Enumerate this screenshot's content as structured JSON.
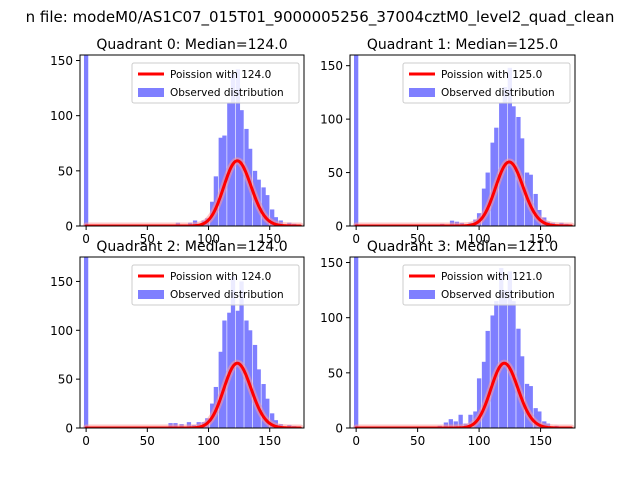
{
  "figure": {
    "suptitle": "n file: modeM0/AS1C07_015T01_9000005256_37004cztM0_level2_quad_clean"
  },
  "colors": {
    "histogram": "#7f7fff",
    "fit_line": "#ff0000",
    "fit_glow": "#ff9999",
    "axis": "#000000"
  },
  "chart_data": [
    {
      "type": "bar",
      "title": "Quadrant 0: Median=124.0",
      "xlim": [
        -5,
        178
      ],
      "ylim": [
        0,
        155
      ],
      "xticks": [
        0,
        50,
        100,
        150
      ],
      "yticks": [
        0,
        50,
        100,
        150
      ],
      "legend_placement": "top-right",
      "bin_width": 3.5,
      "bins": [
        {
          "x": 0,
          "count": 155
        },
        {
          "x": 67,
          "count": 1
        },
        {
          "x": 75,
          "count": 3
        },
        {
          "x": 85,
          "count": 3
        },
        {
          "x": 89,
          "count": 5
        },
        {
          "x": 92,
          "count": 2
        },
        {
          "x": 96,
          "count": 5
        },
        {
          "x": 99,
          "count": 7
        },
        {
          "x": 103,
          "count": 22
        },
        {
          "x": 106,
          "count": 45
        },
        {
          "x": 110,
          "count": 80
        },
        {
          "x": 113,
          "count": 82
        },
        {
          "x": 117,
          "count": 112
        },
        {
          "x": 120,
          "count": 138
        },
        {
          "x": 124,
          "count": 142
        },
        {
          "x": 127,
          "count": 105
        },
        {
          "x": 131,
          "count": 88
        },
        {
          "x": 134,
          "count": 70
        },
        {
          "x": 138,
          "count": 50
        },
        {
          "x": 141,
          "count": 42
        },
        {
          "x": 145,
          "count": 35
        },
        {
          "x": 148,
          "count": 28
        },
        {
          "x": 152,
          "count": 15
        },
        {
          "x": 155,
          "count": 8
        },
        {
          "x": 159,
          "count": 5
        },
        {
          "x": 166,
          "count": 3
        },
        {
          "x": 170,
          "count": 2
        }
      ],
      "series": [
        {
          "name": "Poission with 124.0",
          "kind": "poisson",
          "mean": 124.0,
          "scale": 1650
        },
        {
          "name": "Observed distribution",
          "kind": "histogram"
        }
      ]
    },
    {
      "type": "bar",
      "title": "Quadrant 1: Median=125.0",
      "xlim": [
        -5,
        178
      ],
      "ylim": [
        0,
        160
      ],
      "xticks": [
        0,
        50,
        100,
        150
      ],
      "yticks": [
        0,
        50,
        100,
        150
      ],
      "legend_placement": "top-right",
      "bin_width": 3.5,
      "bins": [
        {
          "x": 0,
          "count": 160
        },
        {
          "x": 70,
          "count": 2
        },
        {
          "x": 78,
          "count": 5
        },
        {
          "x": 82,
          "count": 4
        },
        {
          "x": 86,
          "count": 3
        },
        {
          "x": 93,
          "count": 3
        },
        {
          "x": 97,
          "count": 6
        },
        {
          "x": 100,
          "count": 12
        },
        {
          "x": 104,
          "count": 35
        },
        {
          "x": 107,
          "count": 50
        },
        {
          "x": 111,
          "count": 78
        },
        {
          "x": 114,
          "count": 92
        },
        {
          "x": 118,
          "count": 115
        },
        {
          "x": 121,
          "count": 130
        },
        {
          "x": 125,
          "count": 148
        },
        {
          "x": 128,
          "count": 112
        },
        {
          "x": 132,
          "count": 102
        },
        {
          "x": 135,
          "count": 82
        },
        {
          "x": 139,
          "count": 50
        },
        {
          "x": 142,
          "count": 48
        },
        {
          "x": 146,
          "count": 30
        },
        {
          "x": 149,
          "count": 15
        },
        {
          "x": 153,
          "count": 8
        },
        {
          "x": 156,
          "count": 4
        },
        {
          "x": 160,
          "count": 3
        },
        {
          "x": 167,
          "count": 3
        },
        {
          "x": 171,
          "count": 2
        }
      ],
      "series": [
        {
          "name": "Poission with 125.0",
          "kind": "poisson",
          "mean": 125.0,
          "scale": 1680
        },
        {
          "name": "Observed distribution",
          "kind": "histogram"
        }
      ]
    },
    {
      "type": "bar",
      "title": "Quadrant 2: Median=124.0",
      "xlim": [
        -5,
        178
      ],
      "ylim": [
        0,
        175
      ],
      "xticks": [
        0,
        50,
        100,
        150
      ],
      "yticks": [
        0,
        50,
        100,
        150
      ],
      "legend_placement": "top-right",
      "bin_width": 3.5,
      "bins": [
        {
          "x": 0,
          "count": 175
        },
        {
          "x": 69,
          "count": 5
        },
        {
          "x": 73,
          "count": 5
        },
        {
          "x": 78,
          "count": 4
        },
        {
          "x": 84,
          "count": 6
        },
        {
          "x": 88,
          "count": 3
        },
        {
          "x": 92,
          "count": 6
        },
        {
          "x": 96,
          "count": 6
        },
        {
          "x": 99,
          "count": 10
        },
        {
          "x": 103,
          "count": 25
        },
        {
          "x": 106,
          "count": 42
        },
        {
          "x": 110,
          "count": 78
        },
        {
          "x": 113,
          "count": 110
        },
        {
          "x": 117,
          "count": 118
        },
        {
          "x": 120,
          "count": 155
        },
        {
          "x": 124,
          "count": 120
        },
        {
          "x": 127,
          "count": 150
        },
        {
          "x": 131,
          "count": 110
        },
        {
          "x": 134,
          "count": 100
        },
        {
          "x": 138,
          "count": 85
        },
        {
          "x": 141,
          "count": 60
        },
        {
          "x": 145,
          "count": 45
        },
        {
          "x": 148,
          "count": 30
        },
        {
          "x": 152,
          "count": 15
        },
        {
          "x": 155,
          "count": 8
        },
        {
          "x": 159,
          "count": 4
        },
        {
          "x": 166,
          "count": 3
        },
        {
          "x": 170,
          "count": 2
        }
      ],
      "series": [
        {
          "name": "Poission with 124.0",
          "kind": "poisson",
          "mean": 124.0,
          "scale": 1850
        },
        {
          "name": "Observed distribution",
          "kind": "histogram"
        }
      ]
    },
    {
      "type": "bar",
      "title": "Quadrant 3: Median=121.0",
      "xlim": [
        -5,
        178
      ],
      "ylim": [
        0,
        155
      ],
      "xticks": [
        0,
        50,
        100,
        150
      ],
      "yticks": [
        0,
        50,
        100,
        150
      ],
      "legend_placement": "top-right",
      "bin_width": 3.5,
      "bins": [
        {
          "x": 0,
          "count": 155
        },
        {
          "x": 68,
          "count": 2
        },
        {
          "x": 73,
          "count": 5
        },
        {
          "x": 77,
          "count": 8
        },
        {
          "x": 81,
          "count": 6
        },
        {
          "x": 85,
          "count": 12
        },
        {
          "x": 89,
          "count": 4
        },
        {
          "x": 93,
          "count": 12
        },
        {
          "x": 97,
          "count": 15
        },
        {
          "x": 100,
          "count": 45
        },
        {
          "x": 104,
          "count": 60
        },
        {
          "x": 107,
          "count": 88
        },
        {
          "x": 111,
          "count": 102
        },
        {
          "x": 114,
          "count": 115
        },
        {
          "x": 118,
          "count": 145
        },
        {
          "x": 121,
          "count": 125
        },
        {
          "x": 125,
          "count": 142
        },
        {
          "x": 128,
          "count": 115
        },
        {
          "x": 132,
          "count": 90
        },
        {
          "x": 135,
          "count": 65
        },
        {
          "x": 139,
          "count": 40
        },
        {
          "x": 142,
          "count": 38
        },
        {
          "x": 146,
          "count": 18
        },
        {
          "x": 149,
          "count": 15
        },
        {
          "x": 153,
          "count": 6
        },
        {
          "x": 156,
          "count": 4
        },
        {
          "x": 163,
          "count": 2
        },
        {
          "x": 170,
          "count": 1
        }
      ],
      "series": [
        {
          "name": "Poission with 121.0",
          "kind": "poisson",
          "mean": 121.0,
          "scale": 1620
        },
        {
          "name": "Observed distribution",
          "kind": "histogram"
        }
      ]
    }
  ]
}
